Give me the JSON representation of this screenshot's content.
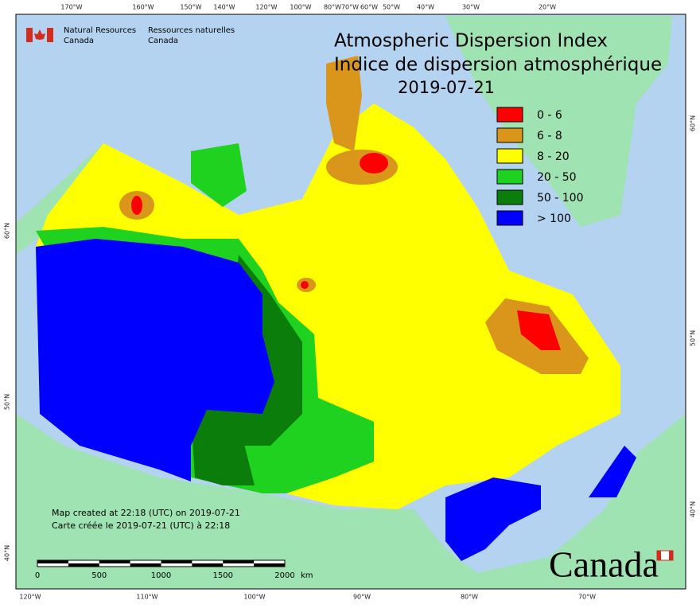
{
  "header": {
    "agency_en": [
      "Natural Resources",
      "Canada"
    ],
    "agency_fr": [
      "Ressources naturelles",
      "Canada"
    ]
  },
  "title": {
    "line1": "Atmospheric Dispersion Index",
    "line2": "Indice de dispersion atmosphérique",
    "date": "2019-07-21"
  },
  "legend": [
    {
      "label": "0 - 6",
      "color": "#ff0000"
    },
    {
      "label": "6 - 8",
      "color": "#d9961a"
    },
    {
      "label": "8 - 20",
      "color": "#ffff00"
    },
    {
      "label": "20 - 50",
      "color": "#1fd21f"
    },
    {
      "label": "50 - 100",
      "color": "#0a7d0a"
    },
    {
      "label": "> 100",
      "color": "#0000ff"
    }
  ],
  "graticule": {
    "top": [
      "170°W",
      "160°W",
      "150°W",
      "140°W",
      "120°W",
      "100°W",
      "80°W",
      "70°W",
      "60°W",
      "50°W",
      "40°W",
      "30°W",
      "20°W"
    ],
    "bottom": [
      "120°W",
      "110°W",
      "100°W",
      "90°W",
      "80°W",
      "70°W"
    ],
    "left": [
      "60°N",
      "50°N",
      "40°N"
    ],
    "right": [
      "60°N",
      "50°N",
      "40°N"
    ]
  },
  "notes": [
    "Map created at 22:18 (UTC) on 2019-07-21",
    "Carte créée le 2019-07-21 (UTC) à 22:18"
  ],
  "scale_bar": {
    "labels": [
      0,
      500,
      1000,
      1500,
      2000
    ],
    "unit": "km"
  },
  "wordmark": "Canada"
}
